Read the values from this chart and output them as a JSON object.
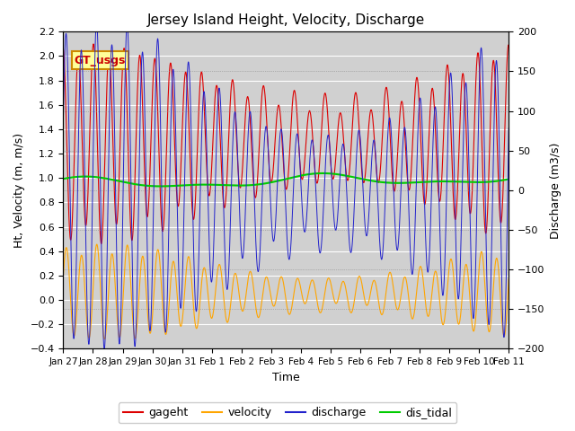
{
  "title": "Jersey Island Height, Velocity, Discharge",
  "xlabel": "Time",
  "ylabel_left": "Ht, Velocity (m, m/s)",
  "ylabel_right": "Discharge (m3/s)",
  "ylim_left": [
    -0.4,
    2.2
  ],
  "ylim_right": [
    -200,
    200
  ],
  "x_tick_labels": [
    "Jan 27",
    "Jan 28",
    "Jan 29",
    "Jan 30",
    "Jan 31",
    "Feb 1",
    "Feb 2",
    "Feb 3",
    "Feb 4",
    "Feb 5",
    "Feb 6",
    "Feb 7",
    "Feb 8",
    "Feb 9",
    "Feb 10",
    "Feb 11"
  ],
  "colors": {
    "gageht": "#dd0000",
    "velocity": "#ffa500",
    "discharge": "#2222cc",
    "dis_tidal": "#00cc00"
  },
  "background_color": "#d8d8d8",
  "gt_usgs_label": "GT_usgs",
  "gt_usgs_bg": "#ffff99",
  "gt_usgs_border": "#cc8800",
  "legend_labels": [
    "gageht",
    "velocity",
    "discharge",
    "dis_tidal"
  ],
  "figsize": [
    6.4,
    4.8
  ],
  "dpi": 100
}
